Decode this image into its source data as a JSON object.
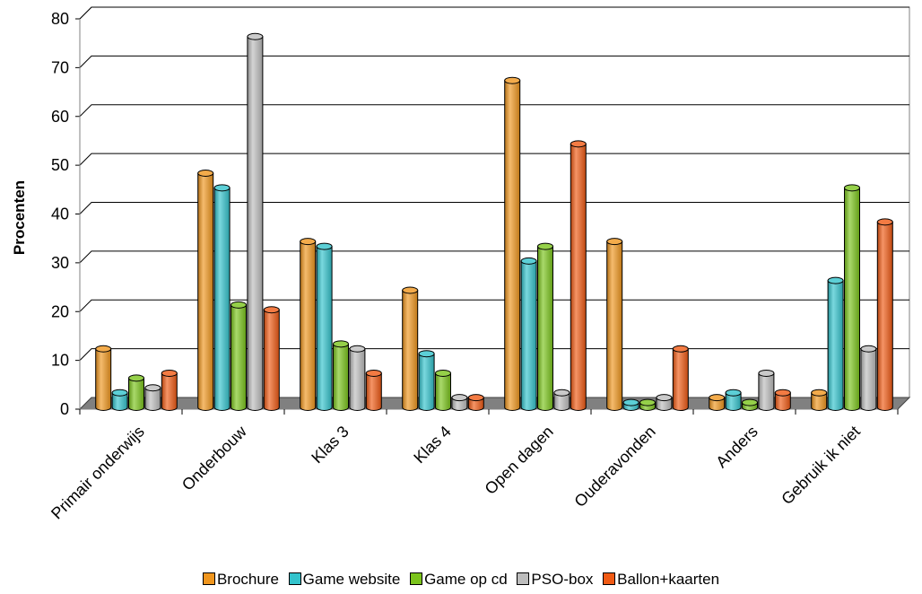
{
  "chart_data": {
    "type": "bar",
    "ylabel": "Procenten",
    "ylim": [
      0,
      80
    ],
    "yticks": [
      0,
      10,
      20,
      30,
      40,
      50,
      60,
      70,
      80
    ],
    "categories": [
      "Primair onderwijs",
      "Onderbouw",
      "Klas 3",
      "Klas 4",
      "Open dagen",
      "Ouderavonden",
      "Anders",
      "Gebruik ik niet"
    ],
    "series": [
      {
        "name": "Brochure",
        "color": "#F0961E",
        "values": [
          12,
          48,
          34,
          24,
          67,
          34,
          2,
          3
        ]
      },
      {
        "name": "Game website",
        "color": "#33C3CC",
        "values": [
          3,
          45,
          33,
          11,
          30,
          1,
          3,
          26
        ]
      },
      {
        "name": "Game op cd",
        "color": "#7BC41C",
        "values": [
          6,
          21,
          13,
          7,
          33,
          1,
          1,
          45
        ]
      },
      {
        "name": "PSO-box",
        "color": "#BDBDBD",
        "values": [
          4,
          76,
          12,
          2,
          3,
          2,
          7,
          12
        ]
      },
      {
        "name": "Ballon+kaarten",
        "color": "#F05A14",
        "values": [
          7,
          20,
          7,
          2,
          54,
          12,
          3,
          38
        ]
      }
    ],
    "grid": true,
    "legend_position": "bottom"
  }
}
